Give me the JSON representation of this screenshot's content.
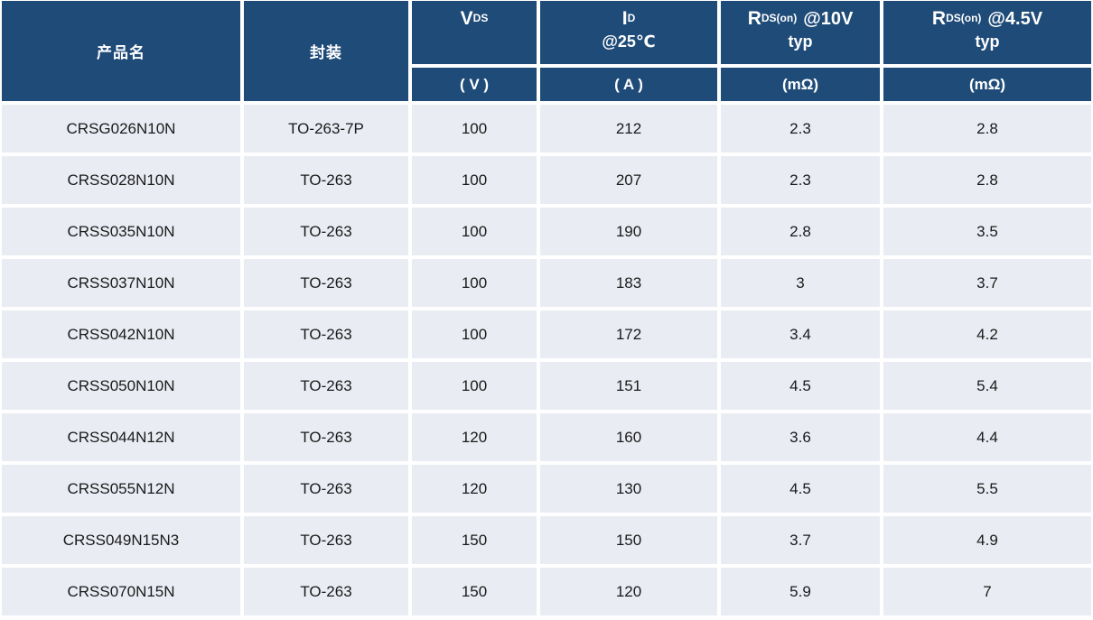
{
  "colors": {
    "header_bg": "#1F4B78",
    "header_text": "#FFFFFF",
    "row_bg": "#E9ECF3",
    "grid_gap": "#FFFFFF",
    "cell_text": "#1A1A1A"
  },
  "table": {
    "columns": [
      {
        "id": "product",
        "label": "产品名"
      },
      {
        "id": "package",
        "label": "封装"
      },
      {
        "id": "vds",
        "symbol": "V",
        "subscript": "DS",
        "suffix": "",
        "line2": "",
        "unit": "( V )"
      },
      {
        "id": "id_25c",
        "symbol": "I",
        "subscript": "D",
        "suffix": "",
        "line2": "@25℃",
        "unit": "( A )"
      },
      {
        "id": "rds_on_10v",
        "symbol": "R",
        "subscript": "DS(on)",
        "suffix": "@10V",
        "line2": "typ",
        "unit": "(mΩ)"
      },
      {
        "id": "rds_on_4v5",
        "symbol": "R",
        "subscript": "DS(on)",
        "suffix": "@4.5V",
        "line2": "typ",
        "unit": "(mΩ)"
      }
    ],
    "rows": [
      [
        "CRSG026N10N",
        "TO-263-7P",
        "100",
        "212",
        "2.3",
        "2.8"
      ],
      [
        "CRSS028N10N",
        "TO-263",
        "100",
        "207",
        "2.3",
        "2.8"
      ],
      [
        "CRSS035N10N",
        "TO-263",
        "100",
        "190",
        "2.8",
        "3.5"
      ],
      [
        "CRSS037N10N",
        "TO-263",
        "100",
        "183",
        "3",
        "3.7"
      ],
      [
        "CRSS042N10N",
        "TO-263",
        "100",
        "172",
        "3.4",
        "4.2"
      ],
      [
        "CRSS050N10N",
        "TO-263",
        "100",
        "151",
        "4.5",
        "5.4"
      ],
      [
        "CRSS044N12N",
        "TO-263",
        "120",
        "160",
        "3.6",
        "4.4"
      ],
      [
        "CRSS055N12N",
        "TO-263",
        "120",
        "130",
        "4.5",
        "5.5"
      ],
      [
        "CRSS049N15N3",
        "TO-263",
        "150",
        "150",
        "3.7",
        "4.9"
      ],
      [
        "CRSS070N15N",
        "TO-263",
        "150",
        "120",
        "5.9",
        "7"
      ]
    ]
  },
  "chart_data": {
    "type": "table",
    "title": "",
    "columns": [
      "产品名",
      "封装",
      "VDS (V)",
      "ID @25℃ (A)",
      "RDS(on) @10V typ (mΩ)",
      "RDS(on) @4.5V typ (mΩ)"
    ],
    "rows": [
      [
        "CRSG026N10N",
        "TO-263-7P",
        100,
        212,
        2.3,
        2.8
      ],
      [
        "CRSS028N10N",
        "TO-263",
        100,
        207,
        2.3,
        2.8
      ],
      [
        "CRSS035N10N",
        "TO-263",
        100,
        190,
        2.8,
        3.5
      ],
      [
        "CRSS037N10N",
        "TO-263",
        100,
        183,
        3,
        3.7
      ],
      [
        "CRSS042N10N",
        "TO-263",
        100,
        172,
        3.4,
        4.2
      ],
      [
        "CRSS050N10N",
        "TO-263",
        100,
        151,
        4.5,
        5.4
      ],
      [
        "CRSS044N12N",
        "TO-263",
        120,
        160,
        3.6,
        4.4
      ],
      [
        "CRSS055N12N",
        "TO-263",
        120,
        130,
        4.5,
        5.5
      ],
      [
        "CRSS049N15N3",
        "TO-263",
        150,
        150,
        3.7,
        4.9
      ],
      [
        "CRSS070N15N",
        "TO-263",
        150,
        120,
        5.9,
        7
      ]
    ]
  }
}
